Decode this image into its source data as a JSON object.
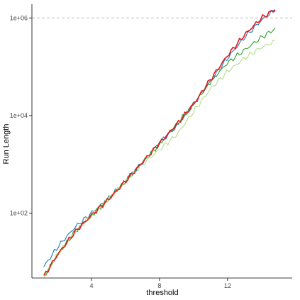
{
  "chart_data": {
    "type": "line",
    "xlabel": "threshold",
    "ylabel": "Run Length",
    "y_scale": "log10",
    "xlim": [
      0.5,
      15.8
    ],
    "ylim_log10": [
      0.67,
      6.28
    ],
    "x_ticks": [
      4,
      8,
      12
    ],
    "x_tick_labels": [
      "4",
      "8",
      "12"
    ],
    "y_ticks": [
      100,
      10000,
      1000000
    ],
    "y_tick_labels": [
      "1e+02",
      "1e+04",
      "1e+06"
    ],
    "reference_line": {
      "y": 1000000,
      "style": "dashed",
      "color": "#bfbfbf"
    },
    "grid": false,
    "legend": "none",
    "series": [
      {
        "color": "#1f78b4",
        "x": [
          1.2,
          2.0,
          3.0,
          4.0,
          5.0,
          6.0,
          7.0,
          8.0,
          9.0,
          10.0,
          11.0,
          12.0,
          13.0,
          14.0,
          14.8
        ],
        "y": [
          8,
          20,
          50,
          100,
          200,
          450,
          1100,
          2800,
          6000,
          17000,
          50000,
          150000,
          400000,
          900000,
          1500000
        ]
      },
      {
        "color": "#33a02c",
        "x": [
          1.2,
          2.0,
          3.0,
          4.0,
          5.0,
          6.0,
          7.0,
          8.0,
          9.0,
          10.0,
          11.0,
          12.0,
          13.0,
          14.0,
          14.8
        ],
        "y": [
          5,
          14,
          40,
          90,
          190,
          450,
          1100,
          2600,
          6500,
          17000,
          50000,
          120000,
          220000,
          400000,
          600000
        ]
      },
      {
        "color": "#b2df8a",
        "x": [
          1.2,
          2.0,
          3.0,
          4.0,
          5.0,
          6.0,
          7.0,
          8.0,
          9.0,
          10.0,
          11.0,
          12.0,
          13.0,
          14.0,
          14.8
        ],
        "y": [
          5,
          14,
          40,
          90,
          190,
          450,
          1000,
          2000,
          4000,
          12000,
          35000,
          80000,
          150000,
          250000,
          330000
        ]
      },
      {
        "color": "#e31a1c",
        "x": [
          1.2,
          2.0,
          3.0,
          4.0,
          5.0,
          6.0,
          7.0,
          8.0,
          9.0,
          10.0,
          11.0,
          12.0,
          13.0,
          14.0,
          14.8
        ],
        "y": [
          5,
          14,
          40,
          90,
          190,
          450,
          1100,
          2700,
          6500,
          17000,
          55000,
          170000,
          450000,
          1000000,
          1500000
        ]
      }
    ]
  }
}
